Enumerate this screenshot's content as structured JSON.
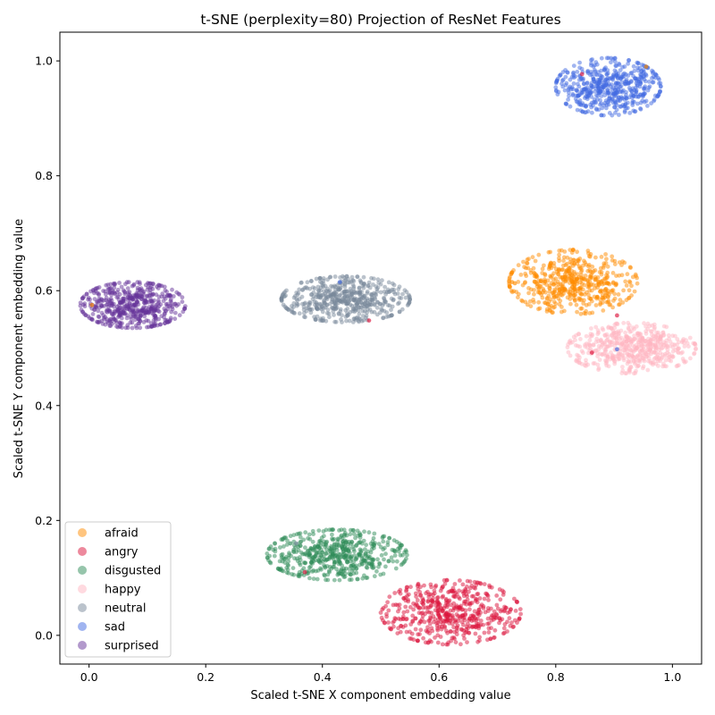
{
  "chart_data": {
    "type": "scatter",
    "title": "t-SNE (perplexity=80) Projection of ResNet Features",
    "xlabel": "Scaled t-SNE X component embedding value",
    "ylabel": "Scaled t-SNE Y component embedding value",
    "xlim": [
      -0.05,
      1.05
    ],
    "ylim": [
      -0.05,
      1.05
    ],
    "xticks": [
      0.0,
      0.2,
      0.4,
      0.6,
      0.8,
      1.0
    ],
    "yticks": [
      0.0,
      0.2,
      0.4,
      0.6,
      0.8,
      1.0
    ],
    "xtick_labels": [
      "0.0",
      "0.2",
      "0.4",
      "0.6",
      "0.8",
      "1.0"
    ],
    "ytick_labels": [
      "0.0",
      "0.2",
      "0.4",
      "0.6",
      "0.8",
      "1.0"
    ],
    "grid": false,
    "legend_position": "lower-left",
    "series": [
      {
        "name": "afraid",
        "color": "#ff8c00",
        "cluster": {
          "center": [
            0.83,
            0.615
          ],
          "spread": [
            0.055,
            0.028
          ],
          "count": 520
        }
      },
      {
        "name": "angry",
        "color": "#dc143c",
        "cluster": {
          "center": [
            0.62,
            0.04
          ],
          "spread": [
            0.06,
            0.028
          ],
          "count": 520
        }
      },
      {
        "name": "disgusted",
        "color": "#2e8b57",
        "cluster": {
          "center": [
            0.425,
            0.14
          ],
          "spread": [
            0.06,
            0.022
          ],
          "count": 520
        }
      },
      {
        "name": "happy",
        "color": "#ffb6c1",
        "cluster": {
          "center": [
            0.93,
            0.5
          ],
          "spread": [
            0.055,
            0.022
          ],
          "count": 520
        }
      },
      {
        "name": "neutral",
        "color": "#778899",
        "cluster": {
          "center": [
            0.44,
            0.585
          ],
          "spread": [
            0.055,
            0.02
          ],
          "count": 520
        }
      },
      {
        "name": "sad",
        "color": "#4169e1",
        "cluster": {
          "center": [
            0.89,
            0.955
          ],
          "spread": [
            0.045,
            0.025
          ],
          "count": 520
        }
      },
      {
        "name": "surprised",
        "color": "#663399",
        "cluster": {
          "center": [
            0.075,
            0.575
          ],
          "spread": [
            0.045,
            0.02
          ],
          "count": 520
        }
      }
    ],
    "outliers": [
      {
        "series": "afraid",
        "x": 0.725,
        "y": 0.615
      },
      {
        "series": "afraid",
        "x": 0.73,
        "y": 0.613
      },
      {
        "series": "afraid",
        "x": 0.005,
        "y": 0.575
      },
      {
        "series": "afraid",
        "x": 0.955,
        "y": 0.99
      },
      {
        "series": "angry",
        "x": 0.905,
        "y": 0.557
      },
      {
        "series": "angry",
        "x": 0.862,
        "y": 0.492
      },
      {
        "series": "angry",
        "x": 0.48,
        "y": 0.548
      },
      {
        "series": "angry",
        "x": 0.37,
        "y": 0.11
      },
      {
        "series": "angry",
        "x": 0.845,
        "y": 0.977
      },
      {
        "series": "disgusted",
        "x": 0.335,
        "y": 0.17
      },
      {
        "series": "disgusted",
        "x": 0.345,
        "y": 0.16
      },
      {
        "series": "neutral",
        "x": 0.355,
        "y": 0.16
      },
      {
        "series": "neutral",
        "x": 0.335,
        "y": 0.59
      },
      {
        "series": "sad",
        "x": 0.43,
        "y": 0.615
      },
      {
        "series": "sad",
        "x": 0.905,
        "y": 0.498
      }
    ]
  }
}
